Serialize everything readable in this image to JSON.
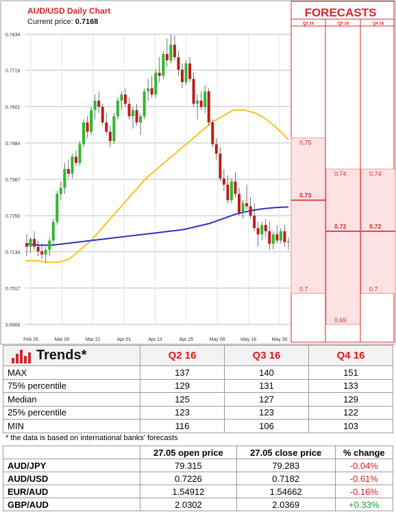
{
  "chart_data": {
    "type": "candlestick",
    "title": "AUD/USD Daily Chart",
    "current_price_label": "Current price:",
    "current_price": "0.7168",
    "y_ticks": [
      "0.7834",
      "0.7718",
      "0.7601",
      "0.7484",
      "0.7367",
      "0.7250",
      "0.7134",
      "0.7017",
      "0.6900"
    ],
    "ylim": [
      0.69,
      0.7834
    ],
    "x_ticks": [
      "Feb 26",
      "Mar 09",
      "Mar 21",
      "Apr 01",
      "Apr 13",
      "Apr 25",
      "May 06",
      "May 18",
      "May 30"
    ],
    "ma_slow_color": "#2d2fc8",
    "ma_fast_color": "#f5c21a",
    "up_color": "#2db82d",
    "down_color": "#c01a1a",
    "ma_fast": [
      0.7105,
      0.7105,
      0.71,
      0.71,
      0.711,
      0.714,
      0.717,
      0.721,
      0.725,
      0.729,
      0.733,
      0.737,
      0.74,
      0.743,
      0.746,
      0.749,
      0.752,
      0.755,
      0.757,
      0.759,
      0.759,
      0.758,
      0.756,
      0.753,
      0.7495
    ],
    "ma_slow": [
      0.716,
      0.7155,
      0.7155,
      0.716,
      0.7165,
      0.717,
      0.7175,
      0.718,
      0.7185,
      0.719,
      0.7195,
      0.72,
      0.7205,
      0.7215,
      0.7225,
      0.724,
      0.7255,
      0.7265,
      0.7272,
      0.7276,
      0.7278
    ],
    "candles": [
      [
        0.716,
        0.719,
        0.712,
        0.715
      ],
      [
        0.715,
        0.718,
        0.713,
        0.7175
      ],
      [
        0.7175,
        0.72,
        0.714,
        0.715
      ],
      [
        0.715,
        0.717,
        0.712,
        0.7135
      ],
      [
        0.7135,
        0.716,
        0.711,
        0.7125
      ],
      [
        0.7125,
        0.715,
        0.71,
        0.714
      ],
      [
        0.714,
        0.718,
        0.712,
        0.717
      ],
      [
        0.717,
        0.724,
        0.716,
        0.723
      ],
      [
        0.723,
        0.733,
        0.722,
        0.732
      ],
      [
        0.732,
        0.736,
        0.73,
        0.734
      ],
      [
        0.734,
        0.742,
        0.732,
        0.74
      ],
      [
        0.74,
        0.743,
        0.737,
        0.7385
      ],
      [
        0.7385,
        0.745,
        0.737,
        0.744
      ],
      [
        0.744,
        0.746,
        0.741,
        0.742
      ],
      [
        0.742,
        0.749,
        0.741,
        0.748
      ],
      [
        0.748,
        0.756,
        0.747,
        0.755
      ],
      [
        0.755,
        0.757,
        0.75,
        0.752
      ],
      [
        0.752,
        0.76,
        0.751,
        0.759
      ],
      [
        0.759,
        0.764,
        0.756,
        0.762
      ],
      [
        0.762,
        0.765,
        0.758,
        0.76
      ],
      [
        0.76,
        0.761,
        0.754,
        0.755
      ],
      [
        0.755,
        0.758,
        0.751,
        0.752
      ],
      [
        0.752,
        0.754,
        0.747,
        0.749
      ],
      [
        0.749,
        0.758,
        0.748,
        0.757
      ],
      [
        0.757,
        0.763,
        0.756,
        0.762
      ],
      [
        0.762,
        0.765,
        0.759,
        0.764
      ],
      [
        0.764,
        0.766,
        0.76,
        0.761
      ],
      [
        0.761,
        0.763,
        0.756,
        0.757
      ],
      [
        0.757,
        0.76,
        0.753,
        0.759
      ],
      [
        0.759,
        0.761,
        0.754,
        0.755
      ],
      [
        0.755,
        0.758,
        0.751,
        0.757
      ],
      [
        0.757,
        0.766,
        0.756,
        0.765
      ],
      [
        0.765,
        0.769,
        0.762,
        0.766
      ],
      [
        0.766,
        0.77,
        0.763,
        0.764
      ],
      [
        0.764,
        0.772,
        0.763,
        0.771
      ],
      [
        0.771,
        0.776,
        0.768,
        0.77
      ],
      [
        0.77,
        0.778,
        0.769,
        0.777
      ],
      [
        0.777,
        0.782,
        0.773,
        0.775
      ],
      [
        0.775,
        0.7834,
        0.774,
        0.78
      ],
      [
        0.78,
        0.783,
        0.775,
        0.776
      ],
      [
        0.776,
        0.778,
        0.77,
        0.772
      ],
      [
        0.772,
        0.774,
        0.766,
        0.768
      ],
      [
        0.768,
        0.775,
        0.767,
        0.774
      ],
      [
        0.774,
        0.776,
        0.768,
        0.769
      ],
      [
        0.769,
        0.771,
        0.76,
        0.761
      ],
      [
        0.761,
        0.764,
        0.756,
        0.762
      ],
      [
        0.762,
        0.765,
        0.759,
        0.76
      ],
      [
        0.76,
        0.767,
        0.758,
        0.765
      ],
      [
        0.765,
        0.766,
        0.754,
        0.755
      ],
      [
        0.755,
        0.756,
        0.747,
        0.748
      ],
      [
        0.748,
        0.75,
        0.743,
        0.745
      ],
      [
        0.745,
        0.747,
        0.736,
        0.737
      ],
      [
        0.737,
        0.74,
        0.733,
        0.735
      ],
      [
        0.735,
        0.738,
        0.729,
        0.73
      ],
      [
        0.73,
        0.737,
        0.729,
        0.736
      ],
      [
        0.736,
        0.739,
        0.731,
        0.732
      ],
      [
        0.732,
        0.734,
        0.725,
        0.726
      ],
      [
        0.726,
        0.73,
        0.724,
        0.729
      ],
      [
        0.729,
        0.735,
        0.727,
        0.728
      ],
      [
        0.728,
        0.731,
        0.724,
        0.725
      ],
      [
        0.725,
        0.729,
        0.72,
        0.721
      ],
      [
        0.721,
        0.723,
        0.715,
        0.719
      ],
      [
        0.719,
        0.723,
        0.717,
        0.722
      ],
      [
        0.722,
        0.724,
        0.718,
        0.72
      ],
      [
        0.72,
        0.723,
        0.714,
        0.716
      ],
      [
        0.716,
        0.72,
        0.714,
        0.719
      ],
      [
        0.719,
        0.722,
        0.716,
        0.717
      ],
      [
        0.717,
        0.721,
        0.716,
        0.72
      ],
      [
        0.72,
        0.722,
        0.715,
        0.7165
      ],
      [
        0.7165,
        0.718,
        0.714,
        0.7168
      ]
    ]
  },
  "forecasts": {
    "title": "FORECASTS",
    "columns": [
      "Q2 16",
      "Q3 16",
      "Q4 16"
    ],
    "bands": [
      {
        "max": "0.75",
        "median": "0.73",
        "min": "0.7",
        "max_v": 0.75,
        "median_v": 0.73,
        "min_v": 0.7
      },
      {
        "max": "0.74",
        "median": "0.72",
        "min": "0.69",
        "max_v": 0.74,
        "median_v": 0.72,
        "min_v": 0.69
      },
      {
        "max": "0.74",
        "median": "0.72",
        "min": "0.7",
        "max_v": 0.74,
        "median_v": 0.72,
        "min_v": 0.7
      }
    ],
    "band_color": "#fde3e3",
    "line_color": "#d8232a"
  },
  "trends": {
    "title": "Trends*",
    "columns": [
      "Q2 16",
      "Q3 16",
      "Q4 16"
    ],
    "rows": [
      {
        "label": "MAX",
        "values": [
          "137",
          "140",
          "151"
        ]
      },
      {
        "label": "75% percentile",
        "values": [
          "129",
          "131",
          "133"
        ]
      },
      {
        "label": "Median",
        "values": [
          "125",
          "127",
          "129"
        ]
      },
      {
        "label": "25% percentile",
        "values": [
          "123",
          "123",
          "122"
        ]
      },
      {
        "label": "MIN",
        "values": [
          "116",
          "106",
          "103"
        ]
      }
    ]
  },
  "footnote": "* the data is based on international banks' forecasts",
  "prices": {
    "columns": [
      "27.05 open price",
      "27.05 close price",
      "% change"
    ],
    "rows": [
      {
        "label": "AUD/JPY",
        "open": "79.315",
        "close": "79.283",
        "change": "-0.04%",
        "dir": "neg"
      },
      {
        "label": "AUD/USD",
        "open": "0.7226",
        "close": "0.7182",
        "change": "-0.61%",
        "dir": "neg"
      },
      {
        "label": "EUR/AUD",
        "open": "1.54912",
        "close": "1.54662",
        "change": "-0.16%",
        "dir": "neg"
      },
      {
        "label": "GBP/AUD",
        "open": "2.0302",
        "close": "2.0369",
        "change": "+0.33%",
        "dir": "pos"
      }
    ]
  }
}
